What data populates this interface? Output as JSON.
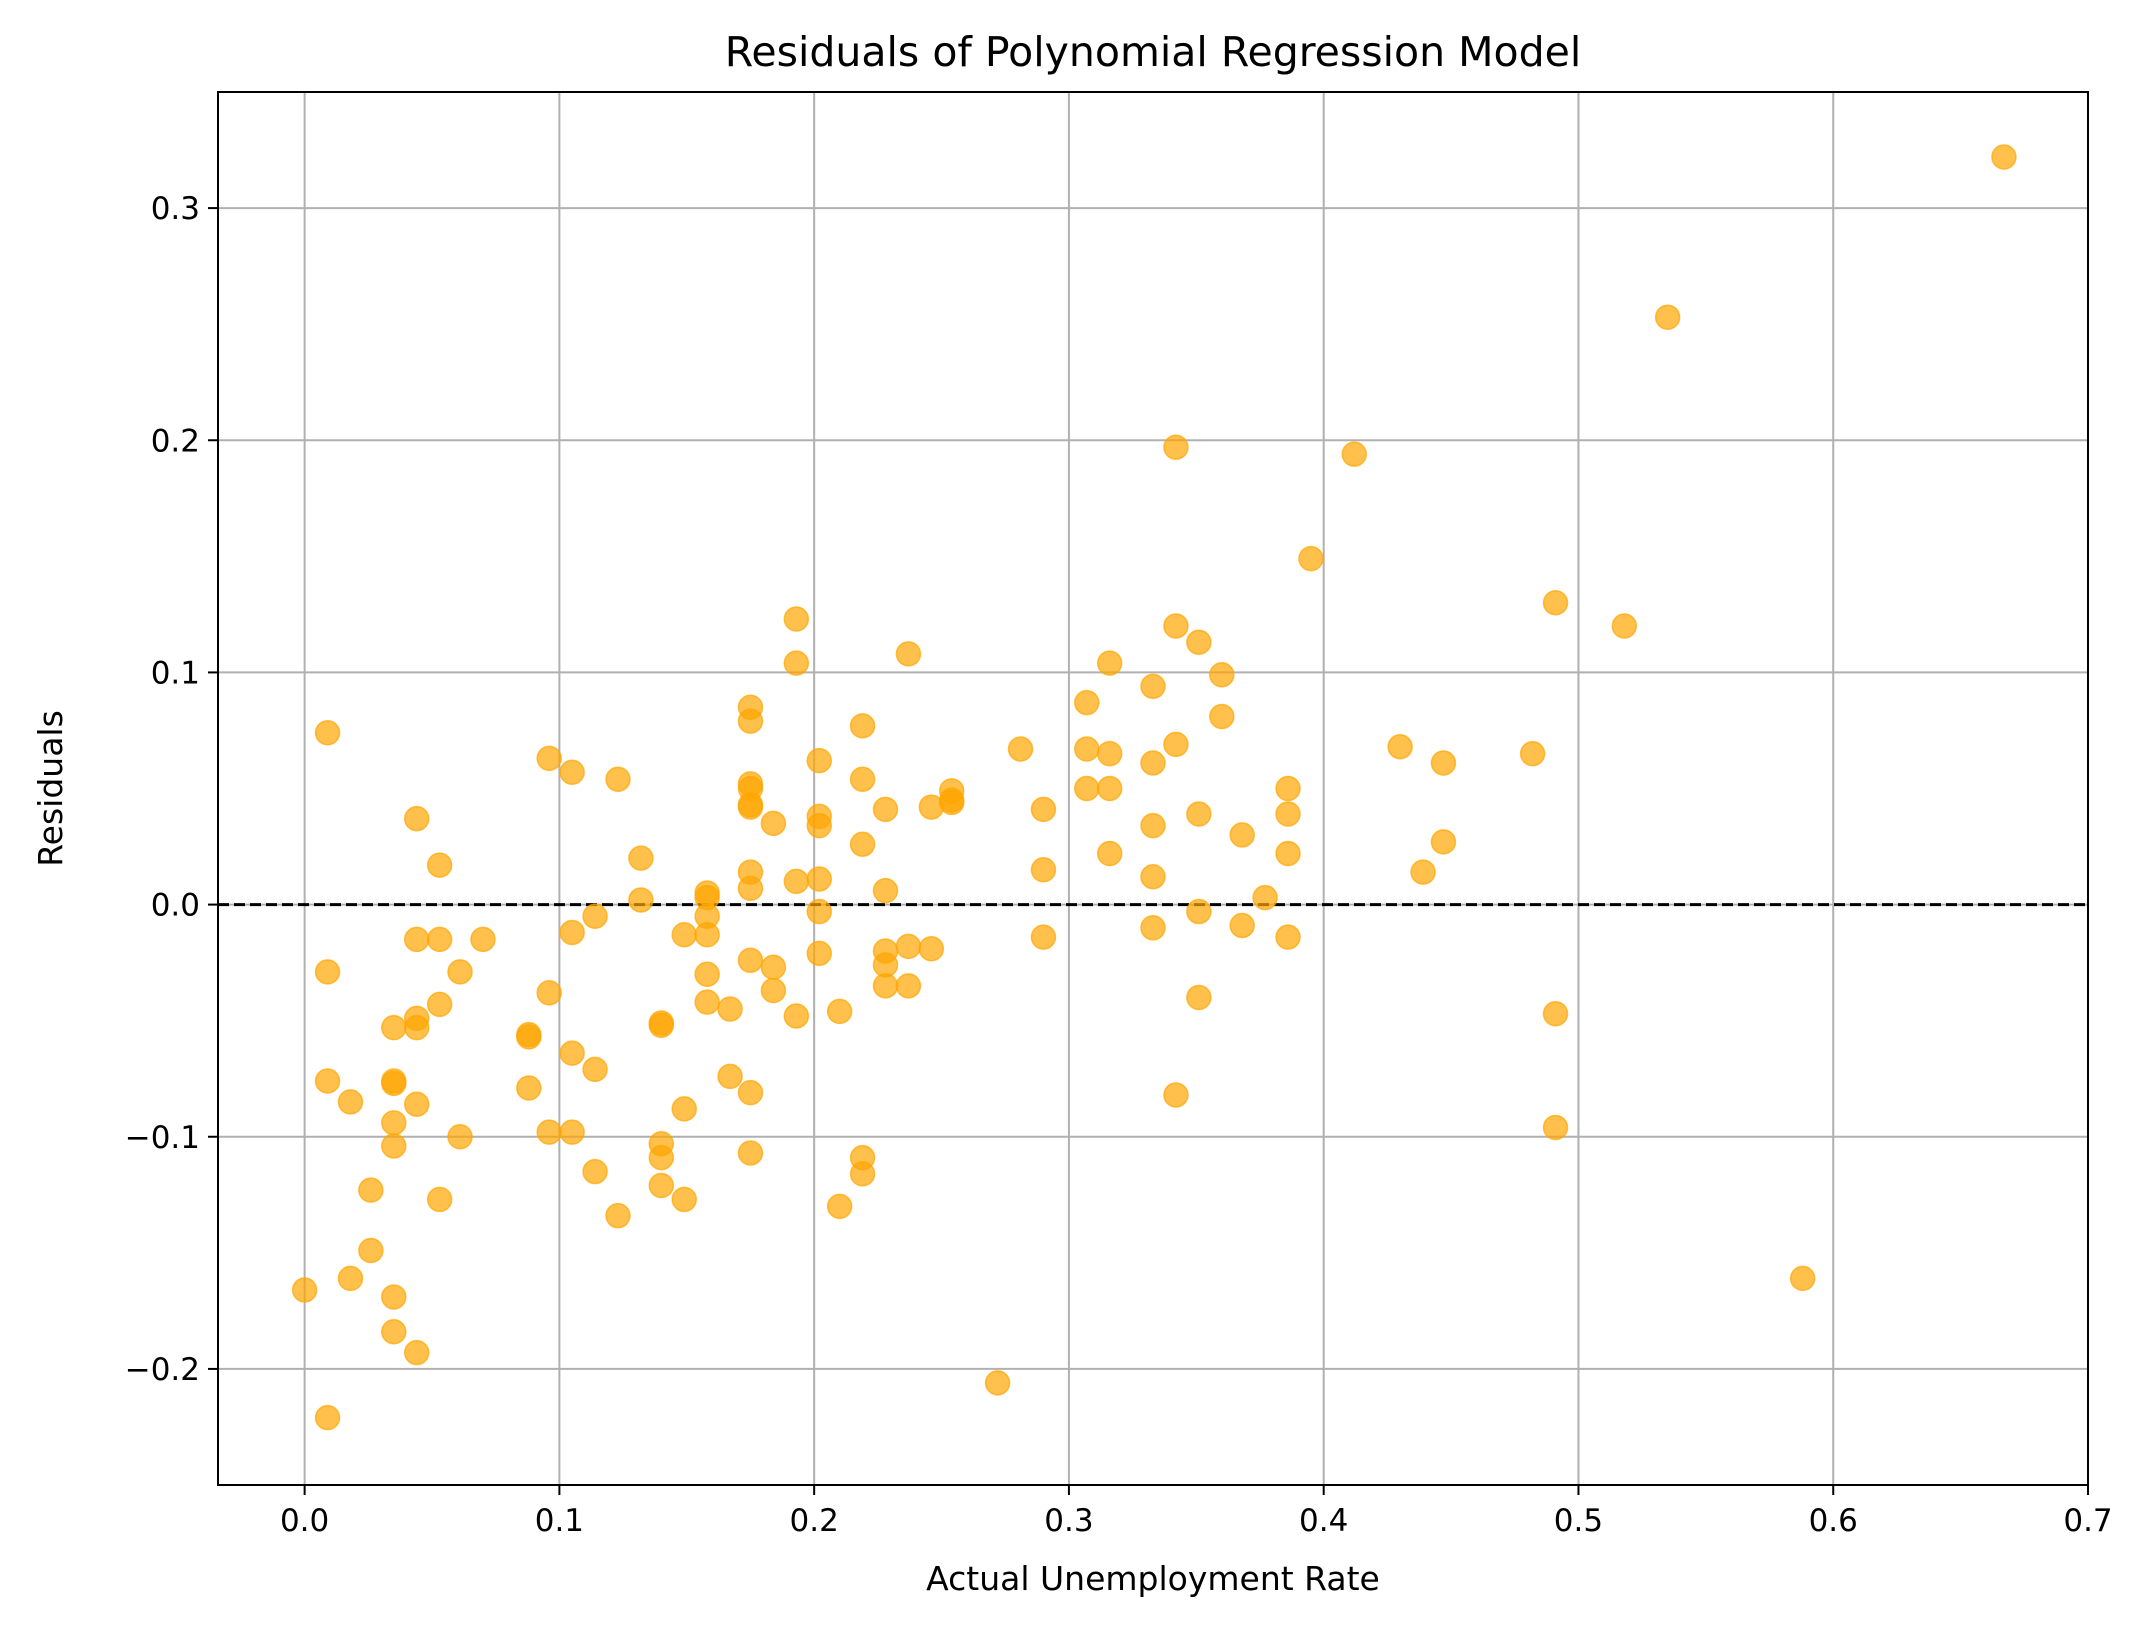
{
  "chart_data": {
    "type": "scatter",
    "title": "Residuals of Polynomial Regression Model",
    "xlabel": "Actual Unemployment Rate",
    "ylabel": "Residuals",
    "xlim": [
      -0.034,
      0.7
    ],
    "ylim": [
      -0.25,
      0.35
    ],
    "xticks": [
      0.0,
      0.1,
      0.2,
      0.3,
      0.4,
      0.5,
      0.6,
      0.7
    ],
    "xtick_labels": [
      "0.0",
      "0.1",
      "0.2",
      "0.3",
      "0.4",
      "0.5",
      "0.6",
      "0.7"
    ],
    "yticks": [
      -0.2,
      -0.1,
      0.0,
      0.1,
      0.2,
      0.3
    ],
    "ytick_labels": [
      "−0.2",
      "−0.1",
      "0.0",
      "0.1",
      "0.2",
      "0.3"
    ],
    "grid": true,
    "reference_line": {
      "y": 0.0,
      "style": "dashed",
      "color": "#000000"
    },
    "marker_color": "#FFA500",
    "marker_alpha": 0.7,
    "points": [
      [
        0.0,
        -0.166
      ],
      [
        0.009,
        0.074
      ],
      [
        0.009,
        -0.029
      ],
      [
        0.009,
        -0.076
      ],
      [
        0.009,
        -0.221
      ],
      [
        0.018,
        -0.085
      ],
      [
        0.018,
        -0.161
      ],
      [
        0.026,
        -0.123
      ],
      [
        0.026,
        -0.149
      ],
      [
        0.035,
        -0.053
      ],
      [
        0.035,
        -0.076
      ],
      [
        0.035,
        -0.077
      ],
      [
        0.035,
        -0.094
      ],
      [
        0.035,
        -0.104
      ],
      [
        0.035,
        -0.169
      ],
      [
        0.035,
        -0.184
      ],
      [
        0.044,
        0.037
      ],
      [
        0.044,
        -0.015
      ],
      [
        0.044,
        -0.049
      ],
      [
        0.044,
        -0.053
      ],
      [
        0.044,
        -0.086
      ],
      [
        0.044,
        -0.193
      ],
      [
        0.053,
        0.017
      ],
      [
        0.053,
        -0.015
      ],
      [
        0.053,
        -0.043
      ],
      [
        0.053,
        -0.127
      ],
      [
        0.061,
        -0.029
      ],
      [
        0.061,
        -0.1
      ],
      [
        0.07,
        -0.015
      ],
      [
        0.088,
        -0.056
      ],
      [
        0.088,
        -0.057
      ],
      [
        0.088,
        -0.079
      ],
      [
        0.096,
        0.063
      ],
      [
        0.096,
        -0.038
      ],
      [
        0.096,
        -0.098
      ],
      [
        0.105,
        0.057
      ],
      [
        0.105,
        -0.012
      ],
      [
        0.105,
        -0.064
      ],
      [
        0.105,
        -0.098
      ],
      [
        0.114,
        -0.005
      ],
      [
        0.114,
        -0.071
      ],
      [
        0.114,
        -0.115
      ],
      [
        0.123,
        0.054
      ],
      [
        0.123,
        -0.134
      ],
      [
        0.132,
        0.02
      ],
      [
        0.132,
        0.002
      ],
      [
        0.14,
        -0.051
      ],
      [
        0.14,
        -0.052
      ],
      [
        0.14,
        -0.103
      ],
      [
        0.14,
        -0.109
      ],
      [
        0.14,
        -0.121
      ],
      [
        0.149,
        -0.013
      ],
      [
        0.149,
        -0.088
      ],
      [
        0.149,
        -0.127
      ],
      [
        0.158,
        0.005
      ],
      [
        0.158,
        0.003
      ],
      [
        0.158,
        -0.005
      ],
      [
        0.158,
        -0.013
      ],
      [
        0.158,
        -0.03
      ],
      [
        0.158,
        -0.042
      ],
      [
        0.167,
        -0.045
      ],
      [
        0.167,
        -0.074
      ],
      [
        0.175,
        0.085
      ],
      [
        0.175,
        0.079
      ],
      [
        0.175,
        0.052
      ],
      [
        0.175,
        0.05
      ],
      [
        0.175,
        0.043
      ],
      [
        0.175,
        0.042
      ],
      [
        0.175,
        0.014
      ],
      [
        0.175,
        0.007
      ],
      [
        0.175,
        -0.024
      ],
      [
        0.175,
        -0.081
      ],
      [
        0.175,
        -0.107
      ],
      [
        0.184,
        0.035
      ],
      [
        0.184,
        -0.027
      ],
      [
        0.184,
        -0.037
      ],
      [
        0.193,
        0.123
      ],
      [
        0.193,
        0.104
      ],
      [
        0.193,
        0.01
      ],
      [
        0.193,
        -0.048
      ],
      [
        0.202,
        0.062
      ],
      [
        0.202,
        0.038
      ],
      [
        0.202,
        0.034
      ],
      [
        0.202,
        0.011
      ],
      [
        0.202,
        -0.003
      ],
      [
        0.202,
        -0.021
      ],
      [
        0.21,
        -0.046
      ],
      [
        0.21,
        -0.13
      ],
      [
        0.219,
        0.077
      ],
      [
        0.219,
        0.054
      ],
      [
        0.219,
        0.026
      ],
      [
        0.219,
        -0.109
      ],
      [
        0.219,
        -0.116
      ],
      [
        0.228,
        0.041
      ],
      [
        0.228,
        0.006
      ],
      [
        0.228,
        -0.02
      ],
      [
        0.228,
        -0.026
      ],
      [
        0.228,
        -0.035
      ],
      [
        0.237,
        0.108
      ],
      [
        0.237,
        -0.018
      ],
      [
        0.237,
        -0.035
      ],
      [
        0.246,
        0.042
      ],
      [
        0.246,
        -0.019
      ],
      [
        0.254,
        0.049
      ],
      [
        0.254,
        0.045
      ],
      [
        0.254,
        0.044
      ],
      [
        0.272,
        -0.206
      ],
      [
        0.281,
        0.067
      ],
      [
        0.29,
        0.041
      ],
      [
        0.29,
        0.015
      ],
      [
        0.29,
        -0.014
      ],
      [
        0.307,
        0.087
      ],
      [
        0.307,
        0.067
      ],
      [
        0.307,
        0.05
      ],
      [
        0.316,
        0.104
      ],
      [
        0.316,
        0.065
      ],
      [
        0.316,
        0.05
      ],
      [
        0.316,
        0.022
      ],
      [
        0.333,
        0.094
      ],
      [
        0.333,
        0.061
      ],
      [
        0.333,
        0.034
      ],
      [
        0.333,
        0.012
      ],
      [
        0.333,
        -0.01
      ],
      [
        0.342,
        0.197
      ],
      [
        0.342,
        0.12
      ],
      [
        0.342,
        0.069
      ],
      [
        0.342,
        -0.082
      ],
      [
        0.351,
        0.113
      ],
      [
        0.351,
        0.039
      ],
      [
        0.351,
        -0.003
      ],
      [
        0.351,
        -0.04
      ],
      [
        0.36,
        0.099
      ],
      [
        0.36,
        0.081
      ],
      [
        0.368,
        0.03
      ],
      [
        0.368,
        -0.009
      ],
      [
        0.377,
        0.003
      ],
      [
        0.386,
        0.05
      ],
      [
        0.386,
        0.039
      ],
      [
        0.386,
        0.022
      ],
      [
        0.386,
        -0.014
      ],
      [
        0.395,
        0.149
      ],
      [
        0.412,
        0.194
      ],
      [
        0.43,
        0.068
      ],
      [
        0.439,
        0.014
      ],
      [
        0.447,
        0.061
      ],
      [
        0.447,
        0.027
      ],
      [
        0.482,
        0.065
      ],
      [
        0.491,
        0.13
      ],
      [
        0.491,
        -0.047
      ],
      [
        0.491,
        -0.096
      ],
      [
        0.518,
        0.12
      ],
      [
        0.535,
        0.253
      ],
      [
        0.588,
        -0.161
      ],
      [
        0.667,
        0.322
      ]
    ]
  }
}
